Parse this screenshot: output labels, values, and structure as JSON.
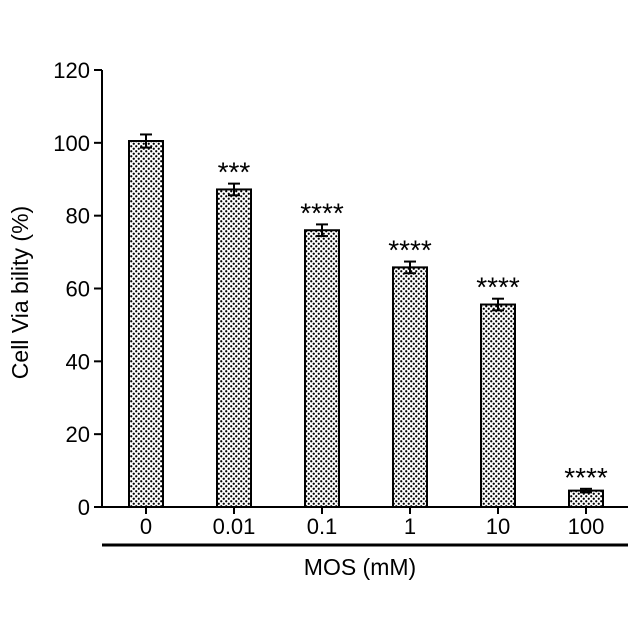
{
  "chart_data": {
    "type": "bar",
    "title": "",
    "xlabel": "MOS (mM)",
    "ylabel": "Cell Via bility (%)",
    "ylim": [
      0,
      120
    ],
    "yticks": [
      "0",
      "20",
      "40",
      "60",
      "80",
      "100",
      "120"
    ],
    "categories": [
      "0",
      "0.01",
      "0.1",
      "1",
      "10",
      "100"
    ],
    "values": [
      100.5,
      87.2,
      76.0,
      65.8,
      55.6,
      4.5
    ],
    "errors": [
      1.8,
      1.6,
      1.6,
      1.6,
      1.6,
      0.5
    ],
    "significance": [
      "",
      "***",
      "****",
      "****",
      "****",
      "****"
    ],
    "grid": false,
    "bar_fill": "dotted-pattern",
    "colors": {
      "bar_stroke": "#000000",
      "bar_dots": "#000000",
      "background": "#ffffff"
    }
  }
}
